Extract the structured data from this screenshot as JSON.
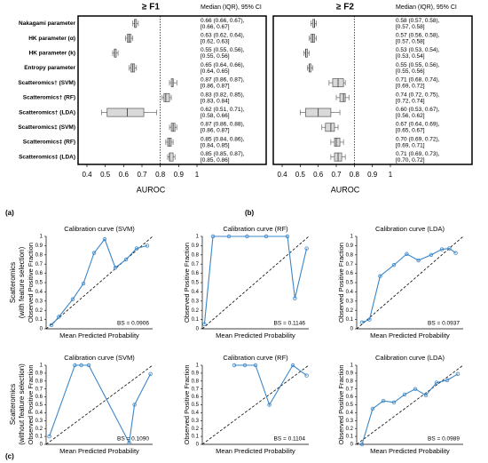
{
  "panel_labels": [
    "(a)",
    "(b)",
    "(c)"
  ],
  "row_labels": [
    [
      "Scatteromics",
      "(with feature selection)"
    ],
    [
      "Scatteromics",
      "(without feature selection)"
    ]
  ],
  "chart_data": [
    {
      "type": "box",
      "title": "≥ F1",
      "stats_header": "Median (IQR), 95% CI",
      "x_label": "AUROC",
      "categories": [
        "Nakagami parameter",
        "HK parameter (α)",
        "HK parameter (k)",
        "Entropy parameter",
        "Scatteromics† (SVM)",
        "Scatteromics† (RF)",
        "Scatteromics† (LDA)",
        "Scatteromics‡ (SVM)",
        "Scatteromics‡ (RF)",
        "Scatteromics‡ (LDA)"
      ],
      "median": [
        0.66,
        0.63,
        0.55,
        0.65,
        0.87,
        0.83,
        0.62,
        0.87,
        0.85,
        0.85
      ],
      "q1": [
        0.66,
        0.62,
        0.55,
        0.64,
        0.86,
        0.82,
        0.51,
        0.86,
        0.84,
        0.85
      ],
      "q3": [
        0.67,
        0.64,
        0.56,
        0.66,
        0.87,
        0.85,
        0.71,
        0.88,
        0.86,
        0.87
      ],
      "whisker_low": [
        0.65,
        0.61,
        0.54,
        0.63,
        0.85,
        0.81,
        0.48,
        0.85,
        0.83,
        0.84
      ],
      "whisker_high": [
        0.68,
        0.65,
        0.57,
        0.67,
        0.89,
        0.86,
        0.78,
        0.89,
        0.87,
        0.88
      ],
      "stat_labels": [
        [
          "0.66 (0.66, 0.67),",
          "[0.66, 0.67]"
        ],
        [
          "0.63 (0.62, 0.64),",
          "[0.62, 0.63]"
        ],
        [
          "0.55 (0.55, 0.56),",
          "[0.55, 0.56]"
        ],
        [
          "0.65 (0.64, 0.66),",
          "[0.64, 0.65]"
        ],
        [
          "0.87 (0.86, 0.87),",
          "[0.86, 0.87]"
        ],
        [
          "0.83 (0.82, 0.85),",
          "[0.83, 0.84]"
        ],
        [
          "0.62 (0.51, 0.71),",
          "[0.58, 0.66]"
        ],
        [
          "0.87 (0.86, 0.88),",
          "[0.86, 0.87]"
        ],
        [
          "0.85 (0.84, 0.86),",
          "[0.84, 0.85]"
        ],
        [
          "0.85 (0.85, 0.87),",
          "[0.85, 0.86]"
        ]
      ],
      "xlim": [
        0.4,
        1
      ],
      "xticks": [
        0.4,
        0.5,
        0.6,
        0.7,
        0.8,
        0.9,
        1
      ],
      "ref_line": 0.8,
      "color": "#d9d9d9"
    },
    {
      "type": "box",
      "title": "≥ F2",
      "stats_header": "Median (IQR), 95% CI",
      "x_label": "AUROC",
      "median": [
        0.58,
        0.57,
        0.53,
        0.55,
        0.71,
        0.74,
        0.6,
        0.67,
        0.7,
        0.71
      ],
      "q1": [
        0.57,
        0.56,
        0.53,
        0.55,
        0.68,
        0.72,
        0.53,
        0.64,
        0.69,
        0.69
      ],
      "q3": [
        0.58,
        0.58,
        0.54,
        0.56,
        0.74,
        0.75,
        0.67,
        0.69,
        0.72,
        0.73
      ],
      "whisker_low": [
        0.56,
        0.55,
        0.52,
        0.54,
        0.66,
        0.7,
        0.5,
        0.62,
        0.67,
        0.67
      ],
      "whisker_high": [
        0.59,
        0.59,
        0.55,
        0.57,
        0.75,
        0.77,
        0.72,
        0.71,
        0.74,
        0.75
      ],
      "stat_labels": [
        [
          "0.58 (0.57, 0.58),",
          "[0.57, 0.58]"
        ],
        [
          "0.57 (0.56, 0.58),",
          "[0.57, 0.58]"
        ],
        [
          "0.53 (0.53, 0.54),",
          "[0.53, 0.54]"
        ],
        [
          "0.55 (0.55, 0.56),",
          "[0.55, 0.56]"
        ],
        [
          "0.71 (0.68, 0.74),",
          "[0.69, 0.72]"
        ],
        [
          "0.74 (0.72, 0.75),",
          "[0.72, 0.74]"
        ],
        [
          "0.60 (0.53, 0.67),",
          "[0.56, 0.62]"
        ],
        [
          "0.67 (0.64, 0.69),",
          "[0.65, 0.67]"
        ],
        [
          "0.70 (0.69, 0.72),",
          "[0.69, 0.71]"
        ],
        [
          "0.71 (0.69, 0.73),",
          "[0.70, 0.72]"
        ]
      ],
      "xlim": [
        0.4,
        1
      ],
      "xticks": [
        0.4,
        0.5,
        0.6,
        0.7,
        0.8,
        0.9,
        1
      ],
      "ref_line": 0.8,
      "color": "#d9d9d9"
    },
    {
      "type": "line",
      "title": "Calibration curve (SVM)",
      "x_label": "Mean Predicted Probability",
      "y_label": "Observed Positive Fraction",
      "annotation": "BS = 0.0906",
      "x": [
        0.05,
        0.12,
        0.25,
        0.35,
        0.45,
        0.55,
        0.65,
        0.75,
        0.85,
        0.95
      ],
      "values": [
        0.04,
        0.13,
        0.32,
        0.49,
        0.82,
        0.97,
        0.66,
        0.75,
        0.87,
        0.9
      ],
      "xlim": [
        0,
        1
      ],
      "ylim": [
        0,
        1
      ],
      "yticks": [
        0,
        0.1,
        0.2,
        0.3,
        0.4,
        0.5,
        0.6,
        0.7,
        0.8,
        0.9,
        1
      ],
      "color": "#3a86c8"
    },
    {
      "type": "line",
      "title": "Calibration curve (RF)",
      "x_label": "Mean Predicted Probability",
      "y_label": "Observed Positive Fraction",
      "annotation": "BS = 0.1146",
      "x": [
        0.02,
        0.1,
        0.25,
        0.42,
        0.6,
        0.8,
        0.87,
        0.98
      ],
      "values": [
        0.05,
        1,
        1,
        1,
        1,
        1,
        0.33,
        0.87
      ],
      "xlim": [
        0,
        1
      ],
      "ylim": [
        0,
        1
      ],
      "yticks": [
        0,
        0.1,
        0.2,
        0.3,
        0.4,
        0.5,
        0.6,
        0.7,
        0.8,
        0.9,
        1
      ],
      "color": "#3a86c8"
    },
    {
      "type": "line",
      "title": "Calibration curve (LDA)",
      "x_label": "Mean Predicted Probability",
      "y_label": "Observed Positive Fraction",
      "annotation": "BS = 0.0937",
      "x": [
        0.05,
        0.12,
        0.22,
        0.35,
        0.47,
        0.58,
        0.7,
        0.8,
        0.87,
        0.93
      ],
      "values": [
        0.07,
        0.1,
        0.57,
        0.69,
        0.81,
        0.74,
        0.8,
        0.86,
        0.87,
        0.82
      ],
      "xlim": [
        0,
        1
      ],
      "ylim": [
        0,
        1
      ],
      "yticks": [
        0,
        0.1,
        0.2,
        0.3,
        0.4,
        0.5,
        0.6,
        0.7,
        0.8,
        0.9,
        1
      ],
      "color": "#3a86c8"
    },
    {
      "type": "line",
      "title": "Calibration curve (SVM)",
      "x_label": "Mean Predicted Probability",
      "y_label": "Observed Positive Fraction",
      "annotation": "BS = 0.1090",
      "x": [
        0.03,
        0.27,
        0.33,
        0.4,
        0.78,
        0.83,
        0.98
      ],
      "values": [
        0.1,
        1,
        1,
        1,
        0.02,
        0.5,
        0.89
      ],
      "xlim": [
        0,
        1
      ],
      "ylim": [
        0,
        1
      ],
      "yticks": [
        0,
        0.1,
        0.2,
        0.3,
        0.4,
        0.5,
        0.6,
        0.7,
        0.8,
        0.9,
        1
      ],
      "color": "#3a86c8"
    },
    {
      "type": "line",
      "title": "Calibration curve (RF)",
      "x_label": "Mean Predicted Probability",
      "y_label": "Observed Positive Fraction",
      "annotation": "BS = 0.1104",
      "x": [
        0.3,
        0.4,
        0.5,
        0.63,
        0.85,
        0.98
      ],
      "values": [
        1,
        1,
        1,
        0.5,
        1,
        0.87
      ],
      "xlim": [
        0,
        1
      ],
      "ylim": [
        0,
        1
      ],
      "yticks": [
        0,
        0.1,
        0.2,
        0.3,
        0.4,
        0.5,
        0.6,
        0.7,
        0.8,
        0.9,
        1
      ],
      "color": "#3a86c8"
    },
    {
      "type": "line",
      "title": "Calibration curve (LDA)",
      "x_label": "Mean Predicted Probability",
      "y_label": "Observed Positive Fraction",
      "annotation": "BS = 0.0989",
      "x": [
        0.05,
        0.15,
        0.25,
        0.35,
        0.45,
        0.55,
        0.65,
        0.75,
        0.85,
        0.95
      ],
      "values": [
        0,
        0.45,
        0.55,
        0.53,
        0.63,
        0.7,
        0.62,
        0.78,
        0.81,
        0.89
      ],
      "xlim": [
        0,
        1
      ],
      "ylim": [
        0,
        1
      ],
      "yticks": [
        0,
        0.1,
        0.2,
        0.3,
        0.4,
        0.5,
        0.6,
        0.7,
        0.8,
        0.9,
        1
      ],
      "color": "#3a86c8"
    }
  ]
}
